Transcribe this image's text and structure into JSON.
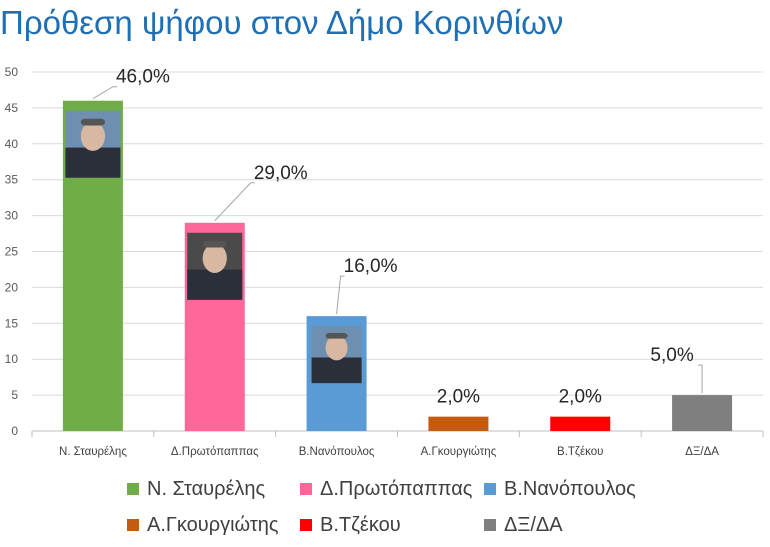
{
  "chart_data": {
    "type": "bar",
    "title": "Πρόθεση ψήφου στον Δήμο Κορινθίων",
    "categories": [
      "Ν. Σταυρέλης",
      "Δ.Πρωτόπαππας",
      "Β.Νανόπουλος",
      "Α.Γκουργιώτης",
      "Β.Τζέκου",
      "ΔΞ/ΔΑ"
    ],
    "values": [
      46.0,
      29.0,
      16.0,
      2.0,
      2.0,
      5.0
    ],
    "data_labels": [
      "46,0%",
      "29,0%",
      "16,0%",
      "2,0%",
      "2,0%",
      "5,0%"
    ],
    "colors": [
      "#70ad47",
      "#ff6699",
      "#5b9bd5",
      "#c55a11",
      "#ff0000",
      "#7f7f7f"
    ],
    "ylim": [
      0,
      50
    ],
    "y_ticks": [
      "0",
      "5",
      "10",
      "15",
      "20",
      "25",
      "30",
      "35",
      "40",
      "45",
      "50"
    ],
    "grid": true,
    "legend_position": "bottom",
    "legend": [
      "Ν. Σταυρέλης",
      "Δ.Πρωτόπαππας",
      "Β.Νανόπουλος",
      "Α.Γκουργιώτης",
      "Β.Τζέκου",
      "ΔΞ/ΔΑ"
    ],
    "bar_images": [
      "portrait-photo",
      "portrait-photo",
      "portrait-photo",
      null,
      null,
      null
    ]
  }
}
